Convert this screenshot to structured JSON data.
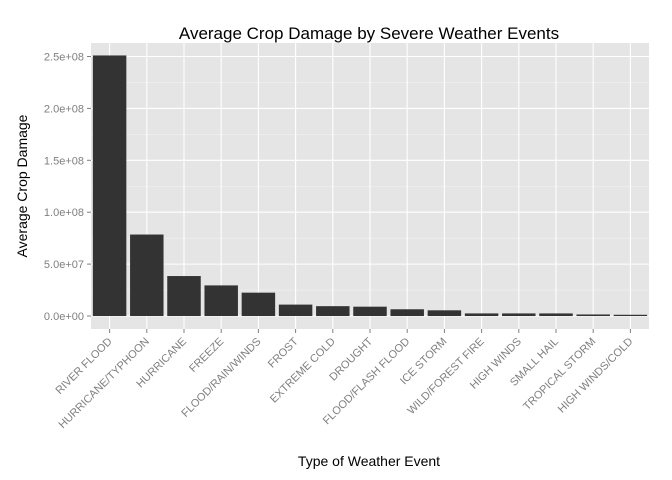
{
  "chart_data": {
    "type": "bar",
    "title": "Average Crop Damage by Severe Weather Events",
    "xlabel": "Type of Weather Event",
    "ylabel": "Average Crop Damage",
    "categories": [
      "RIVER FLOOD",
      "HURRICANE/TYPHOON",
      "HURRICANE",
      "FREEZE",
      "FLOOD/RAIN/WINDS",
      "FROST",
      "EXTREME COLD",
      "DROUGHT",
      "FLOOD/FLASH FLOOD",
      "ICE STORM",
      "WILD/FOREST FIRE",
      "HIGH WINDS",
      "SMALL HAIL",
      "TROPICAL STORM",
      "HIGH WINDS/COLD"
    ],
    "values": [
      251000000,
      78500000,
      38500000,
      29500000,
      22500000,
      11000000,
      9500000,
      9000000,
      6500000,
      5500000,
      2500000,
      2500000,
      2500000,
      1500000,
      1200000
    ],
    "ylim": [
      -12500000,
      263000000
    ],
    "yticks": [
      0,
      50000000,
      100000000,
      150000000,
      200000000,
      250000000
    ],
    "ytick_labels": [
      "0.0e+00",
      "5.0e+07",
      "1.0e+08",
      "1.5e+08",
      "2.0e+08",
      "2.5e+08"
    ],
    "grid": true,
    "colors": {
      "panel": "#e5e5e5",
      "bar": "#333333",
      "grid": "#ffffff"
    }
  }
}
